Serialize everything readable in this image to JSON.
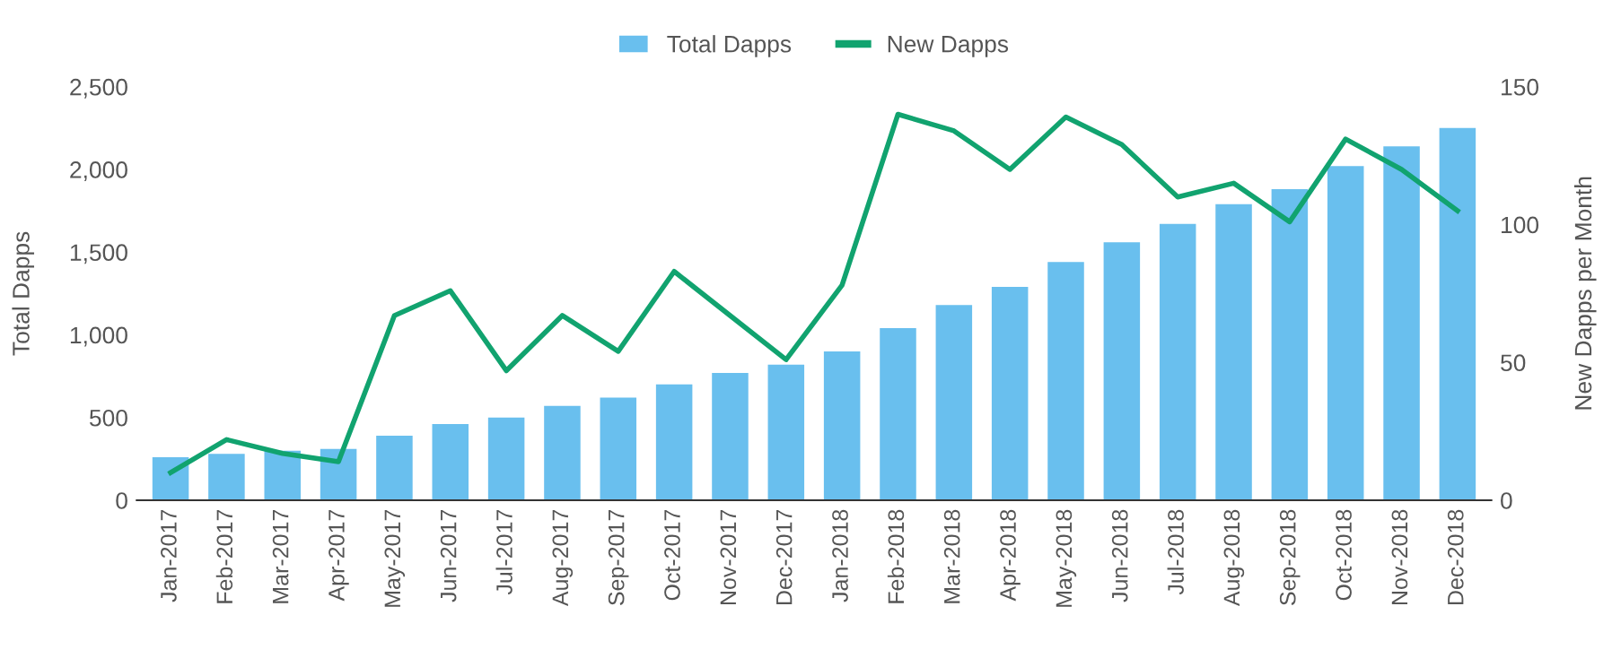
{
  "chart_data": {
    "type": "bar",
    "categories": [
      "Jan-2017",
      "Feb-2017",
      "Mar-2017",
      "Apr-2017",
      "May-2017",
      "Jun-2017",
      "Jul-2017",
      "Aug-2017",
      "Sep-2017",
      "Oct-2017",
      "Nov-2017",
      "Dec-2017",
      "Jan-2018",
      "Feb-2018",
      "Mar-2018",
      "Apr-2018",
      "May-2018",
      "Jun-2018",
      "Jul-2018",
      "Aug-2018",
      "Sep-2018",
      "Oct-2018",
      "Nov-2018",
      "Dec-2018"
    ],
    "series": [
      {
        "name": "Total Dapps",
        "color": "#69bfee",
        "values": [
          260,
          280,
          300,
          310,
          390,
          460,
          500,
          570,
          620,
          700,
          770,
          820,
          900,
          1040,
          1180,
          1290,
          1440,
          1560,
          1670,
          1790,
          1880,
          2020,
          2140,
          2250
        ]
      },
      {
        "name": "New Dapps",
        "type": "line",
        "axis": "y2",
        "color": "#11a36f",
        "values": [
          10,
          22,
          17,
          14,
          67,
          76,
          47,
          67,
          54,
          83,
          67,
          51,
          78,
          140,
          134,
          120,
          139,
          129,
          110,
          115,
          101,
          131,
          120,
          105
        ]
      }
    ],
    "ylabel": "Total Dapps",
    "y2label": "New Dapps per Month",
    "ylim": [
      0,
      2500
    ],
    "yticks": [
      0,
      500,
      {
        "value": 1000,
        "label": "1,000"
      },
      {
        "value": 1500,
        "label": "1,500"
      },
      {
        "value": 2000,
        "label": "2,000"
      },
      {
        "value": 2500,
        "label": "2,500"
      }
    ],
    "y2lim": [
      0,
      150
    ],
    "y2ticks": [
      0,
      50,
      100,
      150
    ],
    "legend": "top",
    "grid": false,
    "marker": "none",
    "line_style": "solid"
  }
}
